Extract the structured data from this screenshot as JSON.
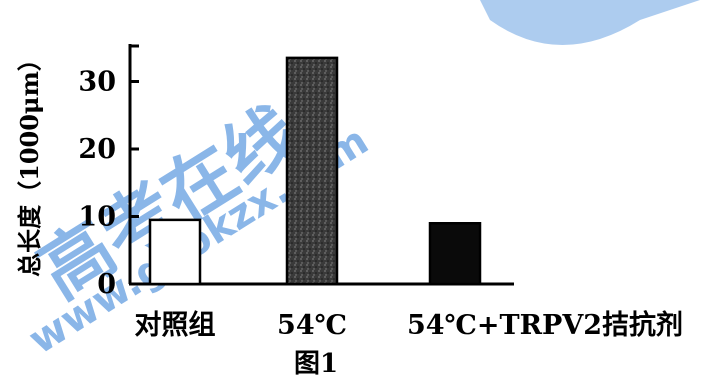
{
  "chart_data": {
    "type": "bar",
    "categories": [
      "对照组",
      "54℃",
      "54℃+TRPV2拮抗剂"
    ],
    "values": [
      9.5,
      33.5,
      9
    ],
    "ylabel": "总长度（1000μm）",
    "ylim": [
      0,
      35
    ],
    "yticks": [
      0,
      10,
      20,
      30
    ],
    "bar_styles": [
      {
        "fill": "#ffffff",
        "stroke": "#000000"
      },
      {
        "fill": "#3a3a3a",
        "stroke": "#000000"
      },
      {
        "fill": "#0a0a0a",
        "stroke": "#000000"
      }
    ],
    "grid": false
  },
  "caption": "图1",
  "watermark": {
    "text_main": "高考在线",
    "text_url": "www.gaokzx.com",
    "color": "#2b7bd6"
  }
}
